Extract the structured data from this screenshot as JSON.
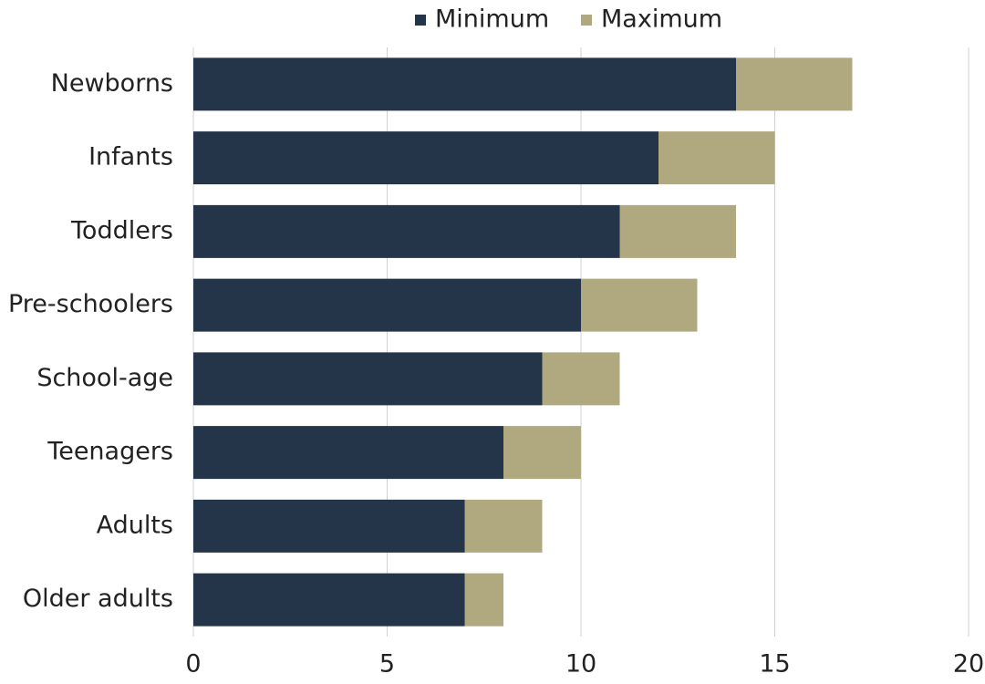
{
  "chart_data": {
    "type": "stacked-barh",
    "categories": [
      "Newborns",
      "Infants",
      "Toddlers",
      "Pre-schoolers",
      "School-age",
      "Teenagers",
      "Adults",
      "Older adults"
    ],
    "series": [
      {
        "name": "Minimum",
        "color": "#253549",
        "values": [
          14,
          12,
          11,
          10,
          9,
          8,
          7,
          7
        ]
      },
      {
        "name": "Maximum",
        "color": "#b0a87f",
        "values": [
          3,
          3,
          3,
          3,
          2,
          2,
          2,
          1
        ]
      }
    ],
    "xlim": [
      0,
      20
    ],
    "xticks": [
      0,
      5,
      10,
      15,
      20
    ],
    "grid": true,
    "legend": "top"
  }
}
